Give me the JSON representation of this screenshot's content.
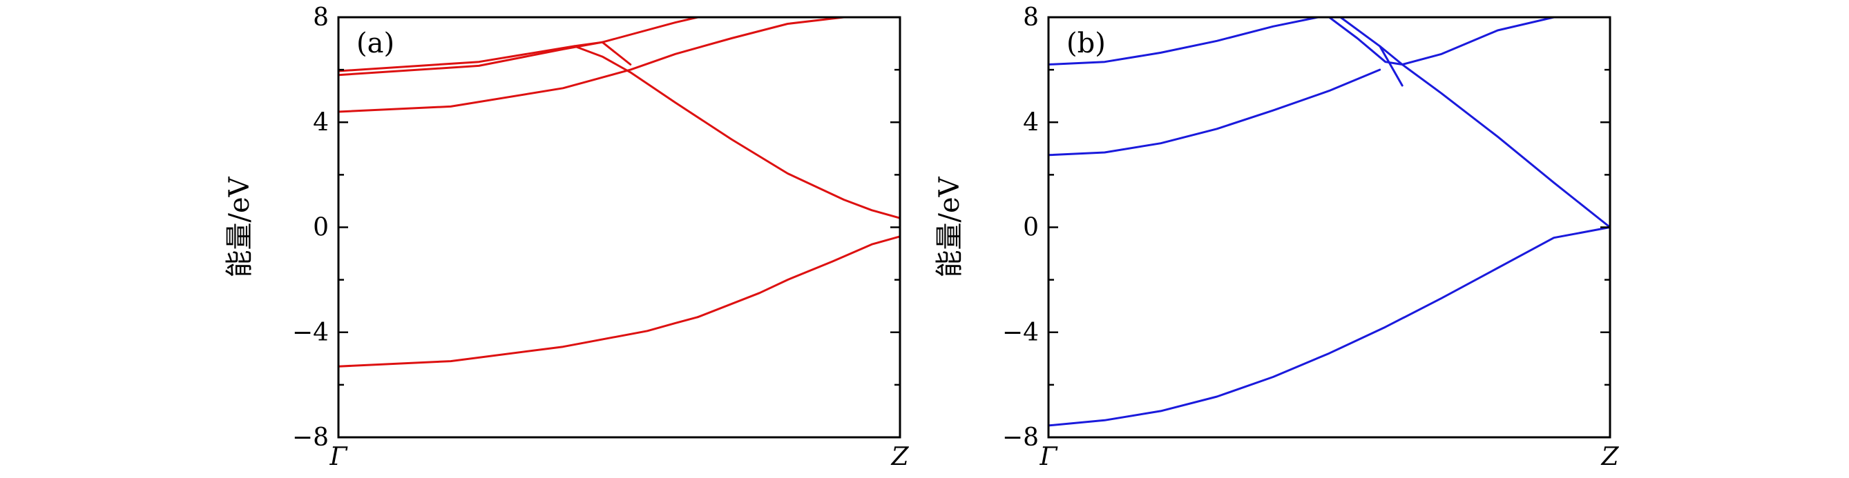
{
  "chart_data": [
    {
      "type": "line",
      "panel_label": "(a)",
      "ylabel": "能量/eV",
      "xlabel": "",
      "x_tick_labels": [
        "Γ",
        "Z"
      ],
      "xlim": [
        0,
        1
      ],
      "ylim": [
        -8,
        8
      ],
      "y_ticks": [
        -8,
        -4,
        0,
        4,
        8
      ],
      "y_tick_labels": [
        "−8",
        "−4",
        "0",
        "4",
        "8"
      ],
      "grid": false,
      "legend": "none",
      "color": "#dd1111",
      "series": [
        {
          "x": [
            0,
            0.2,
            0.4,
            0.55,
            0.6,
            0.64
          ],
          "y": [
            -5.3,
            -5.1,
            -4.55,
            -3.95,
            -3.65,
            -3.42
          ]
        },
        {
          "x": [
            0.64,
            0.75,
            0.8,
            0.88,
            0.95,
            1.0
          ],
          "y": [
            -3.42,
            -2.5,
            -2.0,
            -1.3,
            -0.65,
            -0.35
          ]
        },
        {
          "x": [
            0,
            0.2,
            0.4,
            0.52,
            0.6,
            0.7,
            0.8,
            0.9,
            1.0
          ],
          "y": [
            4.4,
            4.6,
            5.3,
            6.0,
            6.6,
            7.2,
            7.75,
            8.0,
            8.0
          ]
        },
        {
          "x": [
            0,
            0.25,
            0.4,
            0.47
          ],
          "y": [
            5.8,
            6.15,
            6.78,
            7.05
          ]
        },
        {
          "x": [
            0,
            0.25,
            0.42,
            0.47,
            0.52
          ],
          "y": [
            5.95,
            6.3,
            6.9,
            7.05,
            6.2
          ]
        },
        {
          "x": [
            0.47,
            0.6,
            0.64
          ],
          "y": [
            7.05,
            7.8,
            8.0
          ]
        },
        {
          "x": [
            0.42,
            0.47,
            0.52,
            0.6,
            0.7,
            0.8,
            0.9,
            0.95,
            1.0
          ],
          "y": [
            6.9,
            6.5,
            5.9,
            4.75,
            3.35,
            2.05,
            1.05,
            0.65,
            0.35
          ]
        }
      ]
    },
    {
      "type": "line",
      "panel_label": "(b)",
      "ylabel": "能量/eV",
      "xlabel": "",
      "x_tick_labels": [
        "Γ",
        "Z"
      ],
      "xlim": [
        0,
        1
      ],
      "ylim": [
        -8,
        8
      ],
      "y_ticks": [
        -8,
        -4,
        0,
        4,
        8
      ],
      "y_tick_labels": [
        "−8",
        "−4",
        "0",
        "4",
        "8"
      ],
      "grid": false,
      "legend": "none",
      "color": "#1a1adc",
      "series": [
        {
          "x": [
            0,
            0.1,
            0.2,
            0.3,
            0.4,
            0.5,
            0.6,
            0.7,
            0.8,
            0.9,
            1.0
          ],
          "y": [
            -7.55,
            -7.35,
            -7.0,
            -6.45,
            -5.7,
            -4.8,
            -3.8,
            -2.7,
            -1.55,
            -0.4,
            0.0
          ]
        },
        {
          "x": [
            0,
            0.1,
            0.2,
            0.3,
            0.4,
            0.5,
            0.59
          ],
          "y": [
            2.75,
            2.85,
            3.2,
            3.75,
            4.45,
            5.2,
            6.0
          ]
        },
        {
          "x": [
            0,
            0.1,
            0.2,
            0.3,
            0.4,
            0.48,
            0.5
          ],
          "y": [
            6.2,
            6.3,
            6.65,
            7.1,
            7.65,
            8.0,
            8.0
          ]
        },
        {
          "x": [
            0.5,
            0.55,
            0.6,
            0.63,
            0.7,
            0.8,
            0.9,
            1.0
          ],
          "y": [
            8.0,
            7.2,
            6.3,
            6.2,
            5.1,
            3.45,
            1.7,
            0.0
          ]
        },
        {
          "x": [
            0.52,
            0.59,
            0.63
          ],
          "y": [
            8.0,
            6.9,
            5.4
          ]
        },
        {
          "x": [
            0.59,
            0.63,
            0.7,
            0.8,
            0.9,
            1.0
          ],
          "y": [
            6.9,
            6.2,
            6.6,
            7.5,
            8.0,
            8.0
          ]
        }
      ]
    }
  ]
}
